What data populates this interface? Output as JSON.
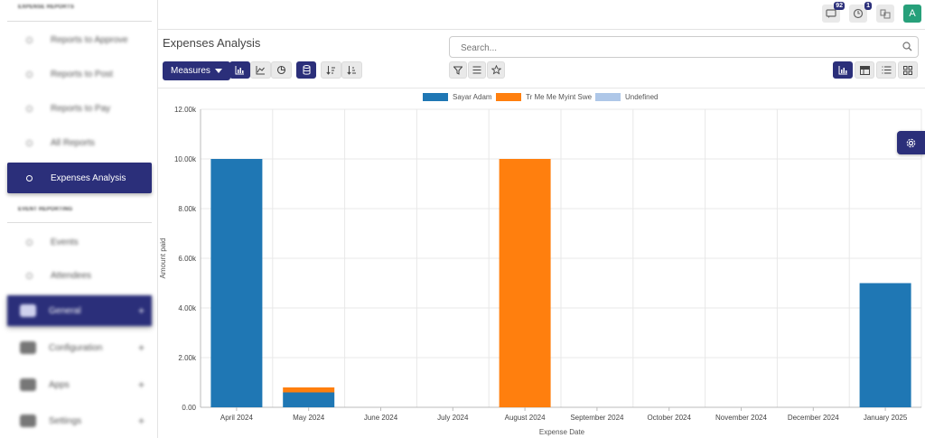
{
  "sidebar": {
    "sections": [
      {
        "label": "Expense Reports"
      },
      {
        "label": "Event Reporting"
      }
    ],
    "items": [
      {
        "label": "Reports to Approve"
      },
      {
        "label": "Reports to Post"
      },
      {
        "label": "Reports to Pay"
      },
      {
        "label": "All Reports"
      },
      {
        "label": "Expenses Analysis"
      },
      {
        "label": "Events"
      },
      {
        "label": "Attendees"
      }
    ],
    "groups": [
      {
        "label": "General"
      },
      {
        "label": "Configuration"
      },
      {
        "label": "Apps"
      },
      {
        "label": "Settings"
      }
    ]
  },
  "topbar": {
    "messages_count": "92",
    "activity_count": "1",
    "avatar_letter": "A"
  },
  "header": {
    "title": "Expenses Analysis",
    "search_placeholder": "Search...",
    "measures_label": "Measures"
  },
  "colors": {
    "accent": "#2b2f7a",
    "series_1": "#1f77b4",
    "series_2": "#ff7f0e",
    "series_3": "#aec7e8"
  },
  "chart_data": {
    "type": "bar",
    "stacked": true,
    "categories": [
      "April 2024",
      "May 2024",
      "June 2024",
      "July 2024",
      "August 2024",
      "September 2024",
      "October 2024",
      "November 2024",
      "December 2024",
      "January 2025"
    ],
    "series": [
      {
        "name": "Sayar Adam",
        "color": "#1f77b4",
        "values": [
          10000,
          600,
          0,
          0,
          0,
          0,
          0,
          0,
          0,
          5000
        ]
      },
      {
        "name": "Tr Me Me Myint Swe",
        "color": "#ff7f0e",
        "values": [
          0,
          200,
          0,
          0,
          10000,
          0,
          0,
          0,
          0,
          0
        ]
      },
      {
        "name": "Undefined",
        "color": "#aec7e8",
        "values": [
          0,
          0,
          0,
          0,
          0,
          0,
          0,
          0,
          0,
          0
        ]
      }
    ],
    "yticks": [
      "0.00",
      "2.00k",
      "4.00k",
      "6.00k",
      "8.00k",
      "10.00k",
      "12.00k"
    ],
    "ylim": [
      0,
      12000
    ],
    "xlabel": "Expense Date",
    "ylabel": "Amount paid",
    "grid": true,
    "legend": "top"
  }
}
